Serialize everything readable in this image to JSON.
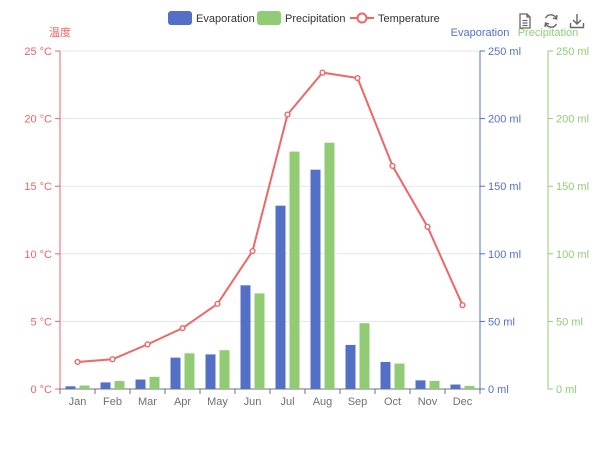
{
  "toolbox": {
    "icons": [
      "data-view-icon",
      "restore-icon",
      "save-image-icon"
    ],
    "color": "#666666"
  },
  "colors": {
    "evaporation": "#5470c6",
    "precipitation": "#91cc75",
    "temperature": "#ee6666",
    "axis_text": "#6e7079",
    "grid": "#e0e6f1"
  },
  "chart_data": {
    "type": "bar",
    "title": "",
    "legend": {
      "position": "top-center",
      "items": [
        {
          "name": "Evaporation",
          "type": "bar"
        },
        {
          "name": "Precipitation",
          "type": "bar"
        },
        {
          "name": "Temperature",
          "type": "line"
        }
      ]
    },
    "categories": [
      "Jan",
      "Feb",
      "Mar",
      "Apr",
      "May",
      "Jun",
      "Jul",
      "Aug",
      "Sep",
      "Oct",
      "Nov",
      "Dec"
    ],
    "y_axes": [
      {
        "id": "temp",
        "name": "温度",
        "position": "left",
        "min": 0,
        "max": 25,
        "ticks": [
          0,
          5,
          10,
          15,
          20,
          25
        ],
        "tick_labels": [
          "0 °C",
          "5 °C",
          "10 °C",
          "15 °C",
          "20 °C",
          "25 °C"
        ]
      },
      {
        "id": "evap",
        "name": "Evaporation",
        "position": "right",
        "min": 0,
        "max": 250,
        "ticks": [
          0,
          50,
          100,
          150,
          200,
          250
        ],
        "tick_labels": [
          "0 ml",
          "50 ml",
          "100 ml",
          "150 ml",
          "200 ml",
          "250 ml"
        ]
      },
      {
        "id": "prec",
        "name": "Precipitation",
        "position": "right-outer",
        "min": 0,
        "max": 250,
        "ticks": [
          0,
          50,
          100,
          150,
          200,
          250
        ],
        "tick_labels": [
          "0 ml",
          "50 ml",
          "100 ml",
          "150 ml",
          "200 ml",
          "250 ml"
        ]
      }
    ],
    "series": [
      {
        "name": "Evaporation",
        "type": "bar",
        "axis": "evap",
        "values": [
          2.0,
          4.9,
          7.0,
          23.2,
          25.6,
          76.7,
          135.6,
          162.2,
          32.6,
          20.0,
          6.4,
          3.3
        ]
      },
      {
        "name": "Precipitation",
        "type": "bar",
        "axis": "prec",
        "values": [
          2.6,
          5.9,
          9.0,
          26.4,
          28.7,
          70.7,
          175.6,
          182.2,
          48.7,
          18.8,
          6.0,
          2.3
        ]
      },
      {
        "name": "Temperature",
        "type": "line",
        "axis": "temp",
        "values": [
          2.0,
          2.2,
          3.3,
          4.5,
          6.3,
          10.2,
          20.3,
          23.4,
          23.0,
          16.5,
          12.0,
          6.2
        ]
      }
    ],
    "grid": true
  }
}
